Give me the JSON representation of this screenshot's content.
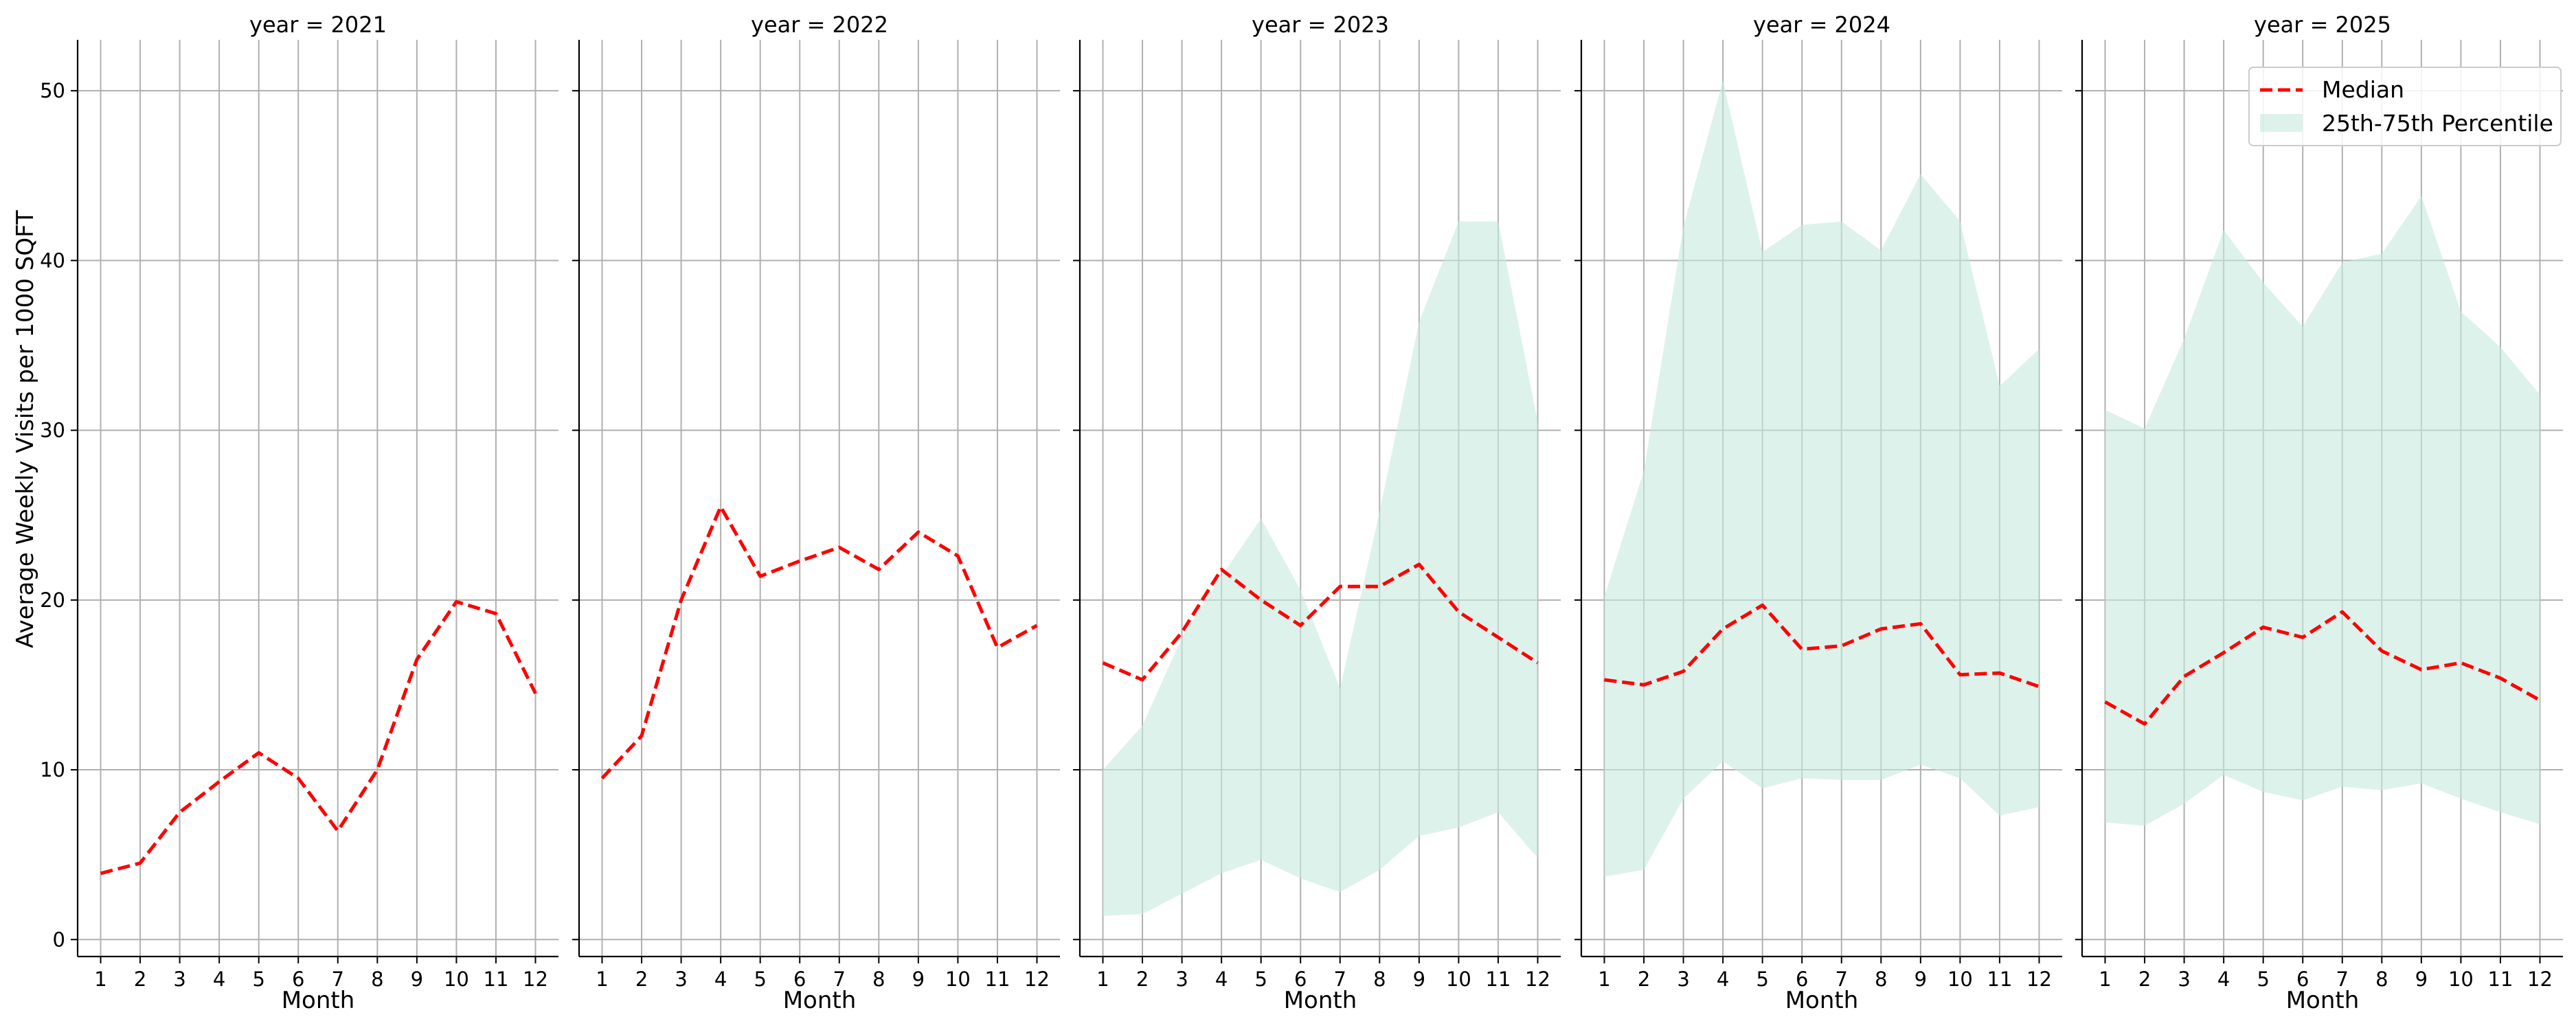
{
  "chart_data": {
    "type": "line",
    "ylabel": "Average Weekly Visits per 1000 SQFT",
    "xlabel": "Month",
    "x_ticks": [
      "1",
      "2",
      "3",
      "4",
      "5",
      "6",
      "7",
      "8",
      "9",
      "10",
      "11",
      "12"
    ],
    "y_ticks": [
      "0",
      "10",
      "20",
      "30",
      "40",
      "50"
    ],
    "ylim": [
      -1,
      53
    ],
    "grid": true,
    "legend": {
      "placement": "top-right",
      "entries": [
        "Median",
        "25th-75th Percentile"
      ]
    },
    "colors": {
      "median": "#ff0000",
      "band": "#c8eadf"
    },
    "facets": [
      {
        "title": "year = 2021",
        "x": [
          1,
          2,
          3,
          4,
          5,
          6,
          7,
          8,
          9,
          10,
          11,
          12
        ],
        "median": [
          3.9,
          4.5,
          7.5,
          9.3,
          11.0,
          9.5,
          6.4,
          10.0,
          16.5,
          19.9,
          19.2,
          14.5
        ],
        "p25": null,
        "p75": null
      },
      {
        "title": "year = 2022",
        "x": [
          1,
          2,
          3,
          4,
          5,
          6,
          7,
          8,
          9,
          10,
          11,
          12
        ],
        "median": [
          9.5,
          12.0,
          20.0,
          25.5,
          21.4,
          22.3,
          23.1,
          21.8,
          24.0,
          22.6,
          17.2,
          18.5
        ],
        "p25": null,
        "p75": null
      },
      {
        "title": "year = 2023",
        "x": [
          1,
          2,
          3,
          4,
          5,
          6,
          7,
          8,
          9,
          10,
          11,
          12
        ],
        "median": [
          16.3,
          15.3,
          18.1,
          21.8,
          20.0,
          18.5,
          20.8,
          20.8,
          22.1,
          19.3,
          17.8,
          16.3
        ],
        "p25": [
          1.4,
          1.5,
          2.7,
          3.9,
          4.7,
          3.6,
          2.8,
          4.1,
          6.1,
          6.6,
          7.5,
          4.8
        ],
        "p75": [
          10.0,
          12.6,
          17.8,
          21.4,
          24.8,
          20.6,
          14.8,
          25.2,
          36.4,
          42.3,
          42.3,
          30.5
        ]
      },
      {
        "title": "year = 2024",
        "x": [
          1,
          2,
          3,
          4,
          5,
          6,
          7,
          8,
          9,
          10,
          11,
          12
        ],
        "median": [
          15.3,
          15.0,
          15.8,
          18.3,
          19.7,
          17.1,
          17.3,
          18.3,
          18.6,
          15.6,
          15.7,
          14.9
        ],
        "p25": [
          3.7,
          4.1,
          8.3,
          10.5,
          8.9,
          9.5,
          9.4,
          9.4,
          10.3,
          9.5,
          7.3,
          7.8
        ],
        "p75": [
          20.2,
          27.6,
          42.0,
          50.6,
          40.5,
          42.1,
          42.3,
          40.6,
          45.1,
          42.3,
          32.6,
          34.8
        ]
      },
      {
        "title": "year = 2025",
        "x": [
          1,
          2,
          3,
          4,
          5,
          6,
          7,
          8,
          9,
          10,
          11,
          12
        ],
        "median": [
          14.0,
          12.7,
          15.5,
          16.9,
          18.4,
          17.8,
          19.3,
          17.0,
          15.9,
          16.3,
          15.4,
          14.1
        ],
        "p25": [
          6.9,
          6.7,
          8.0,
          9.7,
          8.7,
          8.2,
          9.0,
          8.8,
          9.2,
          8.3,
          7.5,
          6.8
        ],
        "p75": [
          31.2,
          30.1,
          35.4,
          41.8,
          38.7,
          36.1,
          39.9,
          40.4,
          43.8,
          37.0,
          34.9,
          32.1
        ]
      }
    ]
  }
}
